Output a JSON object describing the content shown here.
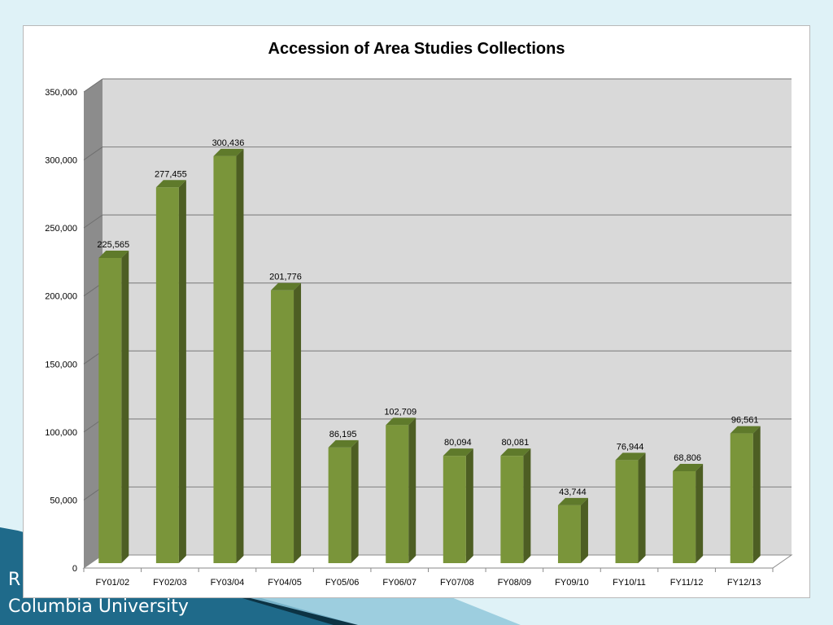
{
  "colors": {
    "slide_background": "#dff2f7",
    "bar_front": "#7a953a",
    "bar_side": "#4d5e23",
    "bar_top": "#5f7a2b",
    "plot_back_wall": "#d9d9d9",
    "plot_side_wall": "#8c8c8c",
    "gridline": "#8a8a8a",
    "footer_band": "#1f6a8a"
  },
  "footer": {
    "line1": "R",
    "line2": "Columbia University"
  },
  "chart_data": {
    "type": "bar",
    "style": "3d-column",
    "title": "Accession of Area Studies Collections",
    "xlabel": "",
    "ylabel": "",
    "categories": [
      "FY01/02",
      "FY02/03",
      "FY03/04",
      "FY04/05",
      "FY05/06",
      "FY06/07",
      "FY07/08",
      "FY08/09",
      "FY09/10",
      "FY10/11",
      "FY11/12",
      "FY12/13"
    ],
    "values": [
      225565,
      277455,
      300436,
      201776,
      86195,
      102709,
      80094,
      80081,
      43744,
      76944,
      68806,
      96561
    ],
    "data_labels": [
      "225,565",
      "277,455",
      "300,436",
      "201,776",
      "86,195",
      "102,709",
      "80,094",
      "80,081",
      "43,744",
      "76,944",
      "68,806",
      "96,561"
    ],
    "ylim": [
      0,
      350000
    ],
    "yticks": [
      0,
      50000,
      100000,
      150000,
      200000,
      250000,
      300000,
      350000
    ],
    "ytick_labels": [
      "0",
      "50,000",
      "100,000",
      "150,000",
      "200,000",
      "250,000",
      "300,000",
      "350,000"
    ],
    "grid": true,
    "legend": "none"
  }
}
